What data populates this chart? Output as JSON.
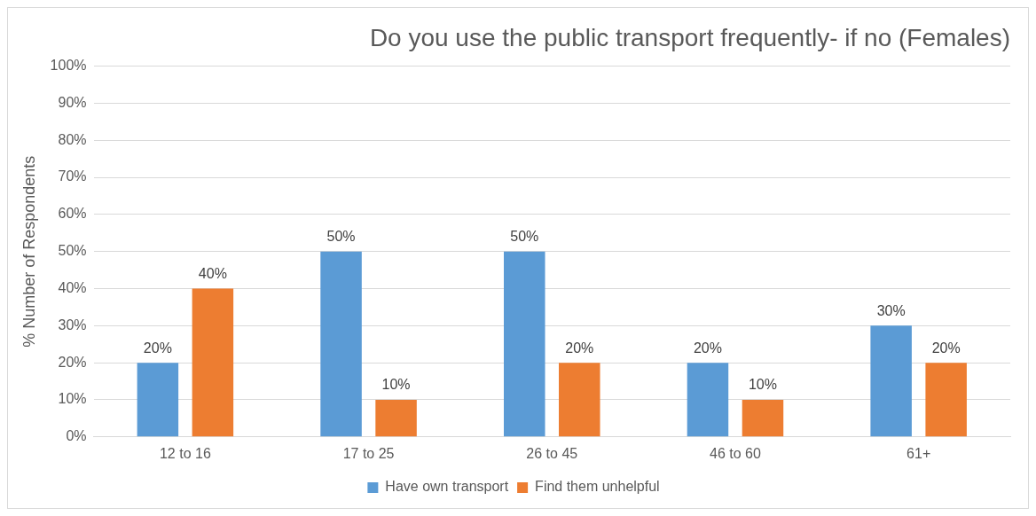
{
  "chart_data": {
    "type": "bar",
    "title": "Do you use the public transport frequently- if no (Females)",
    "ylabel": "% Number of Respondents",
    "categories": [
      "12 to 16",
      "17 to 25",
      "26 to 45",
      "46 to 60",
      "61+"
    ],
    "series": [
      {
        "name": "Have own transport",
        "color": "#5b9bd5",
        "values": [
          20,
          50,
          50,
          20,
          30
        ],
        "value_labels": [
          "20%",
          "50%",
          "50%",
          "20%",
          "30%"
        ]
      },
      {
        "name": "Find them unhelpful",
        "color": "#ed7d31",
        "values": [
          40,
          10,
          20,
          10,
          20
        ],
        "value_labels": [
          "40%",
          "10%",
          "20%",
          "10%",
          "20%"
        ]
      }
    ],
    "ylim": [
      0,
      100
    ],
    "yticks": [
      {
        "value": 0,
        "label": "0%"
      },
      {
        "value": 10,
        "label": "10%"
      },
      {
        "value": 20,
        "label": "20%"
      },
      {
        "value": 30,
        "label": "30%"
      },
      {
        "value": 40,
        "label": "40%"
      },
      {
        "value": 50,
        "label": "50%"
      },
      {
        "value": 60,
        "label": "60%"
      },
      {
        "value": 70,
        "label": "70%"
      },
      {
        "value": 80,
        "label": "80%"
      },
      {
        "value": 90,
        "label": "90%"
      },
      {
        "value": 100,
        "label": "100%"
      }
    ],
    "grid": "y",
    "legend": "bottom"
  }
}
